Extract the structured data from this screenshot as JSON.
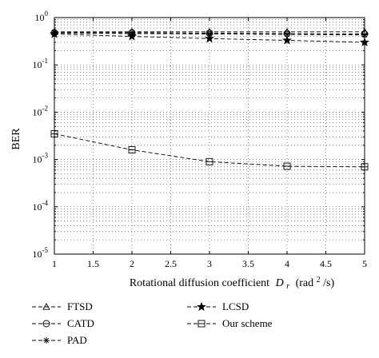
{
  "chart_data": {
    "type": "line",
    "title": "",
    "xlabel": "Rotational diffusion coefficient",
    "xlabel_symbol": "D",
    "xlabel_subscript": "r",
    "xlabel_units_prefix": "(rad",
    "xlabel_units_sup": "2",
    "xlabel_units_suffix": "/s)",
    "ylabel": "BER",
    "xlim": [
      1,
      5
    ],
    "ylim": [
      1e-05,
      1
    ],
    "yscale": "log",
    "grid": true,
    "legend_placement": "below",
    "x_ticks": [
      "1",
      "1.5",
      "2",
      "2.5",
      "3",
      "3.5",
      "4",
      "4.5",
      "5"
    ],
    "y_ticks": [
      {
        "base": "10",
        "exp": "-5"
      },
      {
        "base": "10",
        "exp": "-4"
      },
      {
        "base": "10",
        "exp": "-3"
      },
      {
        "base": "10",
        "exp": "-2"
      },
      {
        "base": "10",
        "exp": "-1"
      },
      {
        "base": "10",
        "exp": "0"
      }
    ],
    "x": [
      1,
      2,
      3,
      4,
      5
    ],
    "series": [
      {
        "name": "FTSD",
        "marker": "triangle",
        "values": [
          0.5,
          0.5,
          0.5,
          0.5,
          0.5
        ]
      },
      {
        "name": "CATD",
        "marker": "circle",
        "values": [
          0.48,
          0.48,
          0.47,
          0.46,
          0.45
        ]
      },
      {
        "name": "PAD",
        "marker": "asterisk",
        "values": [
          0.47,
          0.46,
          0.45,
          0.44,
          0.43
        ]
      },
      {
        "name": "LCSD",
        "marker": "star",
        "values": [
          0.45,
          0.4,
          0.36,
          0.33,
          0.3
        ]
      },
      {
        "name": "Our scheme",
        "marker": "square",
        "values": [
          0.0035,
          0.0016,
          0.0009,
          0.00072,
          0.0007
        ]
      }
    ]
  }
}
